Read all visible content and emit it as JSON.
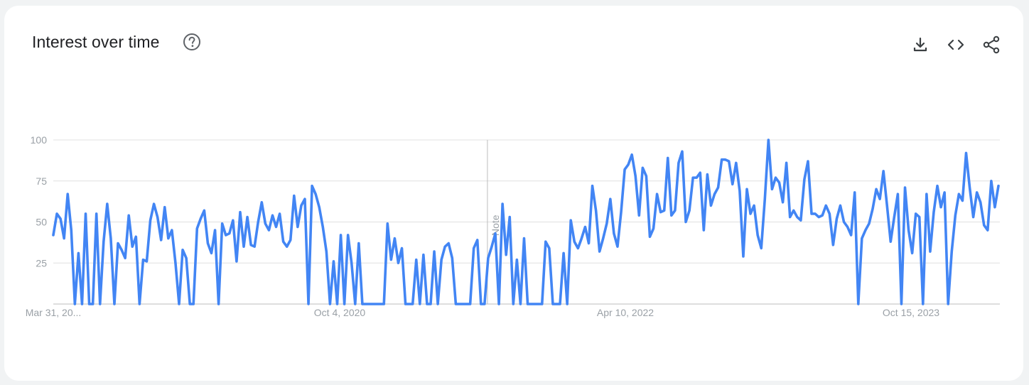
{
  "header": {
    "title": "Interest over time",
    "help_icon": "help-circle-icon"
  },
  "toolbar": {
    "download_icon": "download-icon",
    "embed_icon": "embed-code-icon",
    "share_icon": "share-icon"
  },
  "colors": {
    "line": "#4285f4",
    "grid": "#e0e0e0",
    "axis": "#bdbdbd",
    "tick_text": "#9aa0a6",
    "title_text": "#202124"
  },
  "chart_data": {
    "type": "line",
    "title": "Interest over time",
    "xlabel": "",
    "ylabel": "",
    "ylim": [
      0,
      100
    ],
    "y_ticks": [
      25,
      50,
      75,
      100
    ],
    "x_tick_labels": [
      "Mar 31, 20...",
      "Oct 4, 2020",
      "Apr 10, 2022",
      "Oct 15, 2023"
    ],
    "grid": true,
    "note": {
      "label": "Note",
      "position_index": 121
    },
    "series": [
      {
        "values": [
          42,
          55,
          52,
          40,
          67,
          45,
          0,
          31,
          0,
          55,
          0,
          0,
          55,
          0,
          38,
          61,
          40,
          0,
          37,
          33,
          28,
          54,
          35,
          41,
          0,
          27,
          26,
          51,
          61,
          53,
          39,
          59,
          40,
          45,
          25,
          0,
          33,
          28,
          0,
          0,
          46,
          52,
          57,
          37,
          31,
          45,
          0,
          49,
          42,
          43,
          51,
          26,
          56,
          35,
          53,
          36,
          35,
          50,
          62,
          49,
          45,
          54,
          47,
          55,
          38,
          35,
          39,
          66,
          47,
          60,
          64,
          0,
          72,
          67,
          59,
          47,
          32,
          0,
          26,
          0,
          42,
          0,
          42,
          25,
          0,
          37,
          0,
          0,
          0,
          0,
          0,
          0,
          0,
          49,
          27,
          40,
          25,
          34,
          0,
          0,
          0,
          27,
          0,
          30,
          0,
          0,
          32,
          0,
          27,
          35,
          37,
          28,
          0,
          0,
          0,
          0,
          0,
          34,
          39,
          0,
          0,
          28,
          35,
          43,
          0,
          61,
          30,
          53,
          0,
          27,
          0,
          40,
          0,
          0,
          0,
          0,
          0,
          38,
          34,
          0,
          0,
          0,
          31,
          0,
          51,
          38,
          34,
          40,
          47,
          37,
          72,
          57,
          32,
          40,
          49,
          64,
          43,
          35,
          56,
          82,
          85,
          91,
          78,
          54,
          83,
          78,
          41,
          46,
          67,
          56,
          57,
          89,
          54,
          57,
          86,
          93,
          50,
          57,
          77,
          77,
          80,
          45,
          79,
          60,
          67,
          71,
          88,
          88,
          87,
          73,
          86,
          69,
          29,
          70,
          55,
          60,
          42,
          34,
          64,
          100,
          70,
          77,
          74,
          62,
          86,
          53,
          57,
          53,
          51,
          76,
          87,
          55,
          55,
          53,
          54,
          60,
          55,
          36,
          52,
          60,
          50,
          47,
          42,
          68,
          0,
          40,
          45,
          49,
          58,
          70,
          64,
          81,
          60,
          38,
          53,
          67,
          0,
          71,
          45,
          31,
          55,
          53,
          0,
          67,
          32,
          56,
          72,
          59,
          68,
          0,
          32,
          54,
          67,
          63,
          92,
          71,
          53,
          68,
          62,
          48,
          45,
          75,
          59,
          72
        ]
      }
    ]
  }
}
